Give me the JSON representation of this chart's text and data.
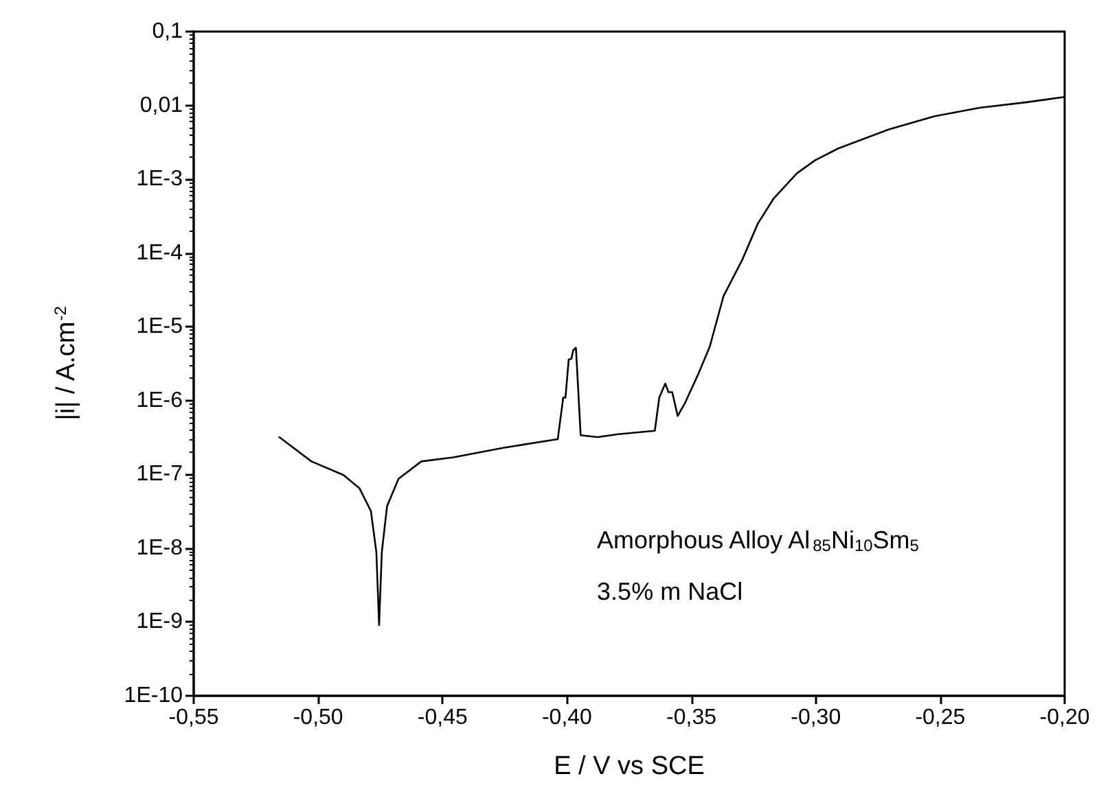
{
  "chart_data": {
    "type": "line",
    "xlabel": "E / V vs SCE",
    "ylabel": "|i| / A.cm$^{-2}$",
    "annotations": [
      "Amorphous Alloy Al$_{85}$Ni$_{10}$Sm$_{5}$",
      "3.5% m NaCl"
    ],
    "log": "y",
    "grid": false,
    "marker": "none",
    "line_style": "solid",
    "xlim": [
      -0.55,
      -0.2
    ],
    "ylim": [
      1e-10,
      0.1
    ],
    "xticks": [
      {
        "value": -0.55,
        "label": "-0,55"
      },
      {
        "value": -0.5,
        "label": "-0,50"
      },
      {
        "value": -0.45,
        "label": "-0,45"
      },
      {
        "value": -0.4,
        "label": "-0,40"
      },
      {
        "value": -0.35,
        "label": "-0,35"
      },
      {
        "value": -0.3,
        "label": "-0,30"
      },
      {
        "value": -0.25,
        "label": "-0,25"
      },
      {
        "value": -0.2,
        "label": "-0,20"
      }
    ],
    "yticks": [
      {
        "value": 1e-10,
        "label": "1E-10"
      },
      {
        "value": 1e-09,
        "label": "1E-9"
      },
      {
        "value": 1e-08,
        "label": "1E-8"
      },
      {
        "value": 1e-07,
        "label": "1E-7"
      },
      {
        "value": 1e-06,
        "label": "1E-6"
      },
      {
        "value": 1e-05,
        "label": "1E-5"
      },
      {
        "value": 0.0001,
        "label": "1E-4"
      },
      {
        "value": 0.001,
        "label": "1E-3"
      },
      {
        "value": 0.01,
        "label": "0,01"
      },
      {
        "value": 0.1,
        "label": "0,1"
      }
    ],
    "series": [
      {
        "color": "#000000",
        "x": [
          -0.5156,
          -0.5027,
          -0.4898,
          -0.4834,
          -0.4788,
          -0.4766,
          -0.4755,
          -0.4744,
          -0.4723,
          -0.4677,
          -0.4585,
          -0.4457,
          -0.4254,
          -0.4037,
          -0.4015,
          -0.4006,
          -0.3993,
          -0.3982,
          -0.3975,
          -0.3964,
          -0.3945,
          -0.3877,
          -0.3794,
          -0.3647,
          -0.3629,
          -0.3605,
          -0.3592,
          -0.3577,
          -0.3555,
          -0.3527,
          -0.3472,
          -0.3426,
          -0.3371,
          -0.3297,
          -0.3233,
          -0.3169,
          -0.3076,
          -0.3003,
          -0.2911,
          -0.2708,
          -0.2524,
          -0.2341,
          -0.2156,
          -0.2
        ],
        "values": [
          3.2e-07,
          1.5e-07,
          9.8e-08,
          6.5e-08,
          3.2e-08,
          8.9e-09,
          9.1e-10,
          8.9e-09,
          3.7e-08,
          8.7e-08,
          1.5e-07,
          1.7e-07,
          2.3e-07,
          3e-07,
          1.1e-06,
          1.1e-06,
          3.6e-06,
          3.7e-06,
          4.8e-06,
          5.2e-06,
          3.4e-07,
          3.2e-07,
          3.5e-07,
          3.9e-07,
          1.1e-06,
          1.7e-06,
          1.3e-06,
          1.3e-06,
          6.2e-07,
          9.1e-07,
          2.3e-06,
          5.4e-06,
          2.6e-05,
          7.9e-05,
          0.00025,
          0.00055,
          0.0012,
          0.0018,
          0.0026,
          0.0047,
          0.0071,
          0.0093,
          0.011,
          0.013
        ]
      }
    ]
  }
}
